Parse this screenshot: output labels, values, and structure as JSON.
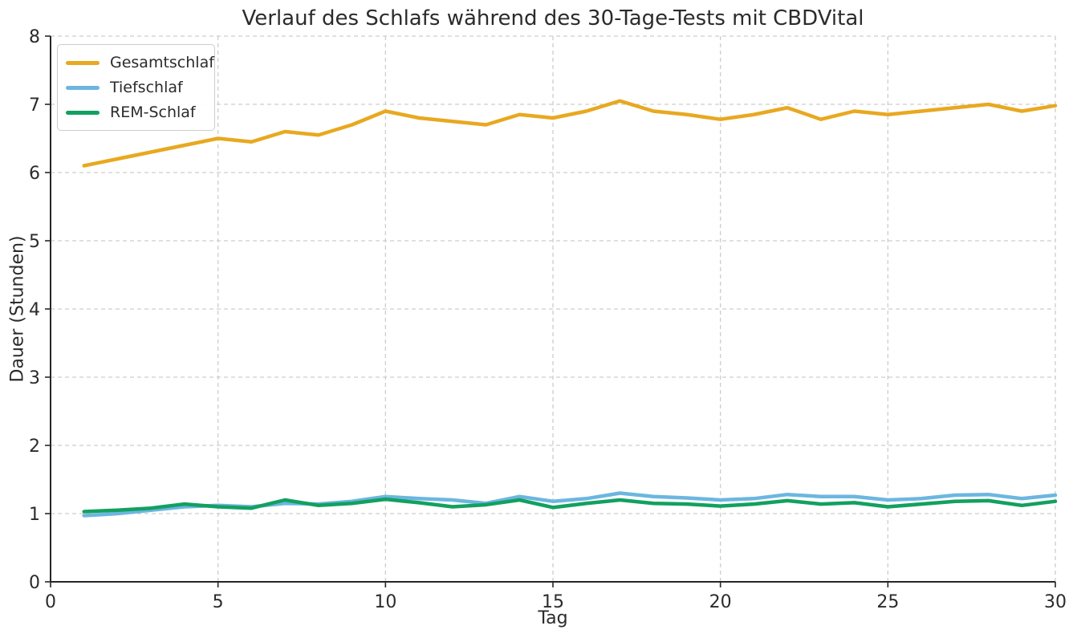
{
  "figure": {
    "background": "#ffffff",
    "text_color": "#2b2b2b"
  },
  "chart_data": {
    "type": "line",
    "title": "Verlauf des Schlafs während des 30-Tage-Tests mit CBDVital",
    "xlabel": "Tag",
    "ylabel": "Dauer (Stunden)",
    "xlim": [
      0,
      30
    ],
    "ylim": [
      0,
      8
    ],
    "xticks": [
      0,
      5,
      10,
      15,
      20,
      25,
      30
    ],
    "yticks": [
      0,
      1,
      2,
      3,
      4,
      5,
      6,
      7,
      8
    ],
    "grid": "dashed",
    "grid_color": "#cdcdcd",
    "axis_color": "#262626",
    "legend_position": "upper-left",
    "x": [
      1,
      2,
      3,
      4,
      5,
      6,
      7,
      8,
      9,
      10,
      11,
      12,
      13,
      14,
      15,
      16,
      17,
      18,
      19,
      20,
      21,
      22,
      23,
      24,
      25,
      26,
      27,
      28,
      29,
      30
    ],
    "series": [
      {
        "name": "Gesamtschlaf",
        "color": "#E8A820",
        "values": [
          6.1,
          6.2,
          6.3,
          6.4,
          6.5,
          6.45,
          6.6,
          6.55,
          6.7,
          6.9,
          6.8,
          6.75,
          6.7,
          6.85,
          6.8,
          6.9,
          7.05,
          6.9,
          6.85,
          6.78,
          6.85,
          6.95,
          6.78,
          6.9,
          6.85,
          6.9,
          6.95,
          7.0,
          6.9,
          6.98
        ]
      },
      {
        "name": "Tiefschlaf",
        "color": "#6CB6E0",
        "values": [
          0.97,
          1.0,
          1.05,
          1.1,
          1.12,
          1.1,
          1.15,
          1.14,
          1.18,
          1.25,
          1.22,
          1.2,
          1.15,
          1.25,
          1.18,
          1.22,
          1.3,
          1.25,
          1.23,
          1.2,
          1.22,
          1.28,
          1.25,
          1.25,
          1.2,
          1.22,
          1.27,
          1.28,
          1.22,
          1.27
        ]
      },
      {
        "name": "REM-Schlaf",
        "color": "#12A060",
        "values": [
          1.03,
          1.05,
          1.08,
          1.14,
          1.1,
          1.08,
          1.2,
          1.12,
          1.15,
          1.21,
          1.16,
          1.1,
          1.13,
          1.2,
          1.09,
          1.15,
          1.2,
          1.15,
          1.14,
          1.11,
          1.14,
          1.19,
          1.14,
          1.16,
          1.1,
          1.14,
          1.18,
          1.19,
          1.12,
          1.18
        ]
      }
    ]
  }
}
